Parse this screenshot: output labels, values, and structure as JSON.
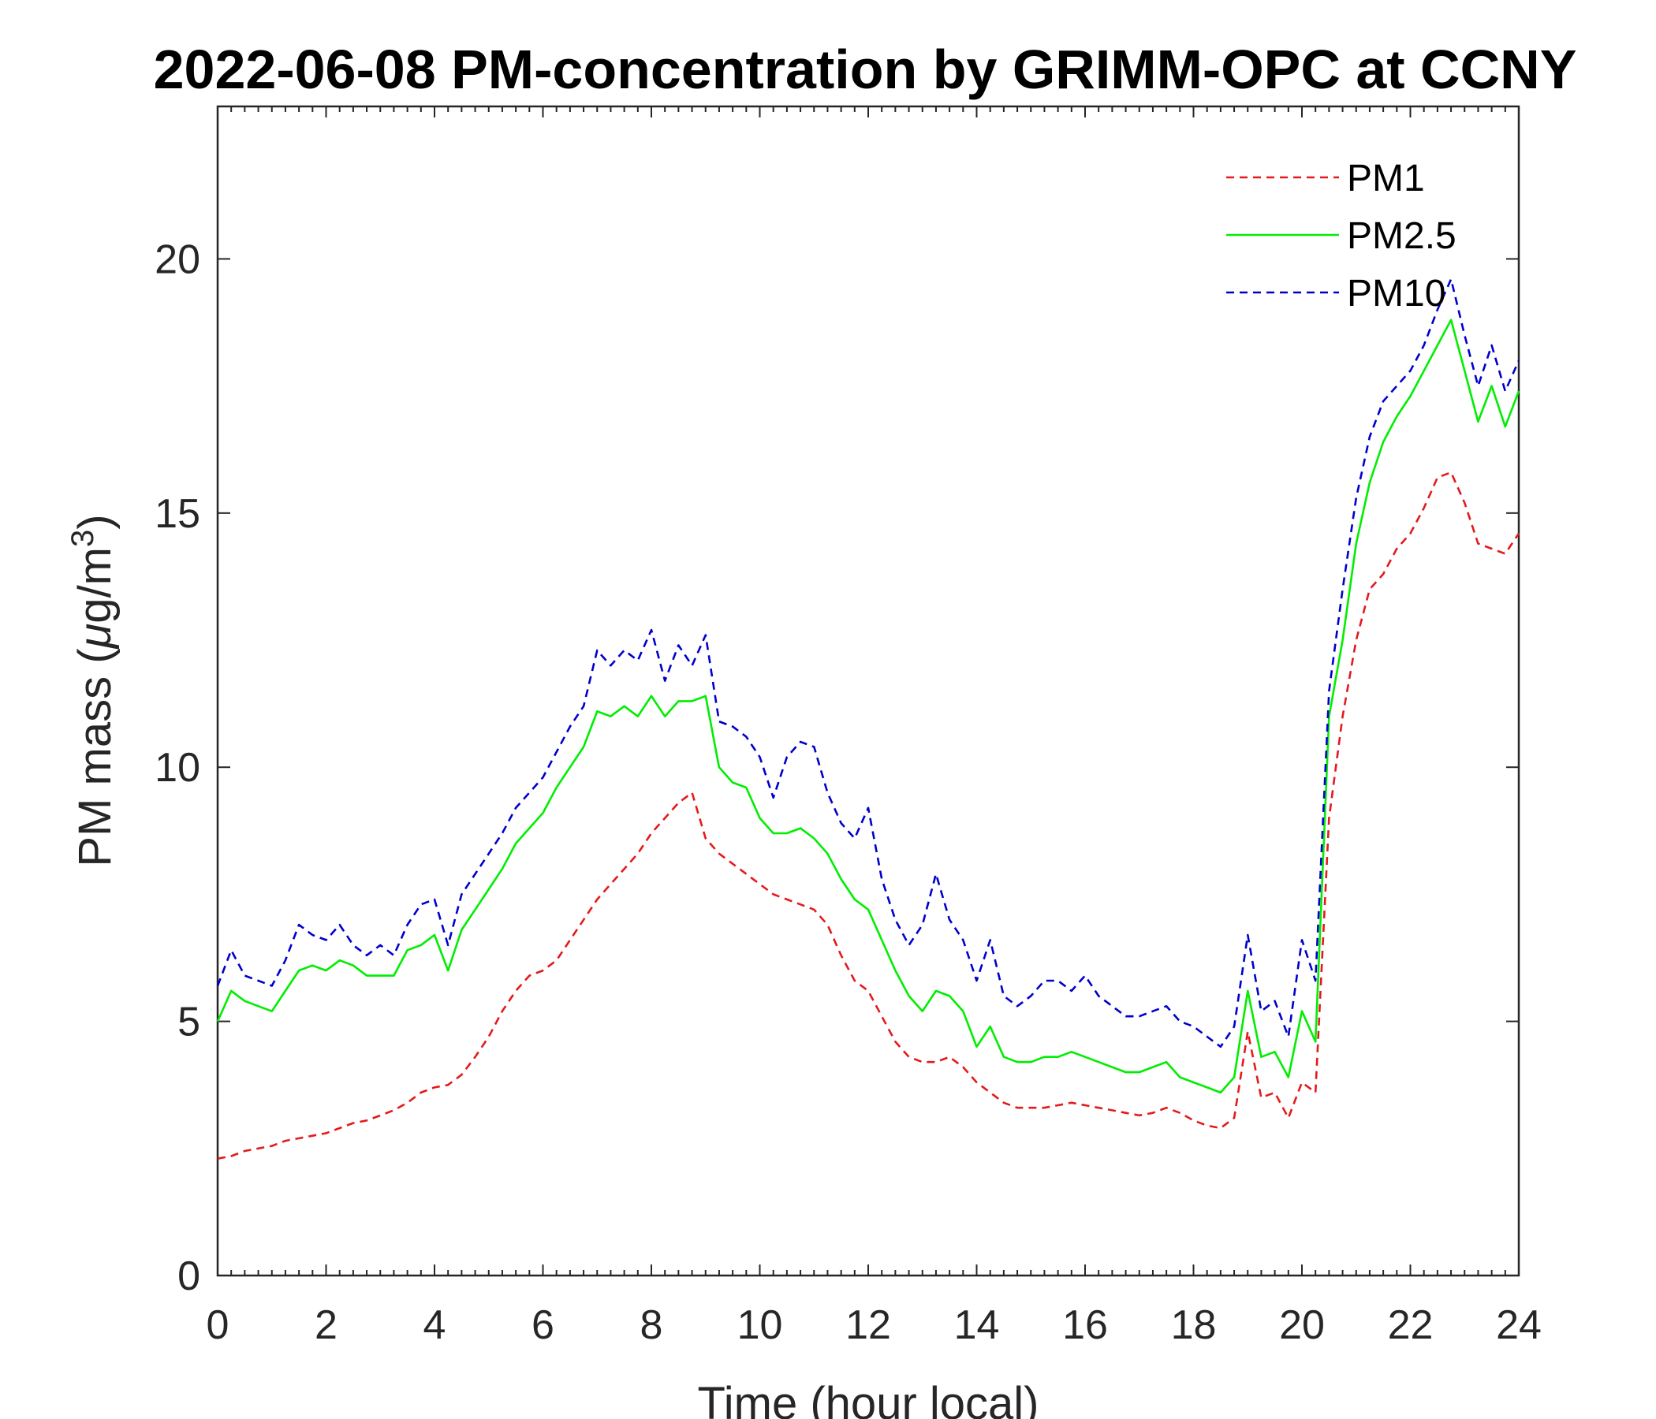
{
  "chart_data": {
    "type": "line",
    "title": "2022-06-08 PM-concentration by GRIMM-OPC at CCNY",
    "xlabel": "Time (hour local)",
    "ylabel_prefix": "PM mass (",
    "ylabel_mu": "μ",
    "ylabel_unit": "g/m",
    "ylabel_sup": "3",
    "ylabel_suffix": ")",
    "xlim": [
      0,
      24
    ],
    "ylim": [
      0,
      23
    ],
    "xticks": [
      0,
      2,
      4,
      6,
      8,
      10,
      12,
      14,
      16,
      18,
      20,
      22,
      24
    ],
    "yticks": [
      0,
      5,
      10,
      15,
      20
    ],
    "grid": false,
    "legend_position": "top-right",
    "x": [
      0,
      0.25,
      0.5,
      0.75,
      1,
      1.25,
      1.5,
      1.75,
      2,
      2.25,
      2.5,
      2.75,
      3,
      3.25,
      3.5,
      3.75,
      4,
      4.25,
      4.5,
      4.75,
      5,
      5.25,
      5.5,
      5.75,
      6,
      6.25,
      6.5,
      6.75,
      7,
      7.25,
      7.5,
      7.75,
      8,
      8.25,
      8.5,
      8.75,
      9,
      9.25,
      9.5,
      9.75,
      10,
      10.25,
      10.5,
      10.75,
      11,
      11.25,
      11.5,
      11.75,
      12,
      12.25,
      12.5,
      12.75,
      13,
      13.25,
      13.5,
      13.75,
      14,
      14.25,
      14.5,
      14.75,
      15,
      15.25,
      15.5,
      15.75,
      16,
      16.25,
      16.5,
      16.75,
      17,
      17.25,
      17.5,
      17.75,
      18,
      18.25,
      18.5,
      18.75,
      19,
      19.25,
      19.5,
      19.75,
      20,
      20.25,
      20.5,
      20.75,
      21,
      21.25,
      21.5,
      21.75,
      22,
      22.25,
      22.5,
      22.75,
      23,
      23.25,
      23.5,
      23.75,
      24
    ],
    "series": [
      {
        "name": "PM1",
        "color": "#e31a1c",
        "style": "dashed",
        "values": [
          2.3,
          2.35,
          2.45,
          2.5,
          2.55,
          2.65,
          2.7,
          2.75,
          2.8,
          2.9,
          3.0,
          3.05,
          3.15,
          3.25,
          3.4,
          3.6,
          3.7,
          3.75,
          3.95,
          4.3,
          4.7,
          5.2,
          5.6,
          5.9,
          6.0,
          6.2,
          6.6,
          7.0,
          7.4,
          7.7,
          8.0,
          8.3,
          8.7,
          9.0,
          9.3,
          9.5,
          8.6,
          8.3,
          8.1,
          7.9,
          7.7,
          7.5,
          7.4,
          7.3,
          7.2,
          6.9,
          6.3,
          5.8,
          5.6,
          5.1,
          4.6,
          4.3,
          4.2,
          4.2,
          4.3,
          4.1,
          3.8,
          3.6,
          3.4,
          3.3,
          3.3,
          3.3,
          3.35,
          3.4,
          3.35,
          3.3,
          3.25,
          3.2,
          3.15,
          3.2,
          3.3,
          3.2,
          3.05,
          2.95,
          2.9,
          3.1,
          4.8,
          3.5,
          3.6,
          3.1,
          3.8,
          3.6,
          9.0,
          11.0,
          12.5,
          13.5,
          13.8,
          14.3,
          14.6,
          15.1,
          15.7,
          15.8,
          15.2,
          14.4,
          14.3,
          14.2,
          14.6
        ]
      },
      {
        "name": "PM2.5",
        "color": "#00ee00",
        "style": "solid",
        "values": [
          5.0,
          5.6,
          5.4,
          5.3,
          5.2,
          5.6,
          6.0,
          6.1,
          6.0,
          6.2,
          6.1,
          5.9,
          5.9,
          5.9,
          6.4,
          6.5,
          6.7,
          6.0,
          6.8,
          7.2,
          7.6,
          8.0,
          8.5,
          8.8,
          9.1,
          9.6,
          10.0,
          10.4,
          11.1,
          11.0,
          11.2,
          11.0,
          11.4,
          11.0,
          11.3,
          11.3,
          11.4,
          10.0,
          9.7,
          9.6,
          9.0,
          8.7,
          8.7,
          8.8,
          8.6,
          8.3,
          7.8,
          7.4,
          7.2,
          6.6,
          6.0,
          5.5,
          5.2,
          5.6,
          5.5,
          5.2,
          4.5,
          4.9,
          4.3,
          4.2,
          4.2,
          4.3,
          4.3,
          4.4,
          4.3,
          4.2,
          4.1,
          4.0,
          4.0,
          4.1,
          4.2,
          3.9,
          3.8,
          3.7,
          3.6,
          3.9,
          5.6,
          4.3,
          4.4,
          3.9,
          5.2,
          4.6,
          11.0,
          12.5,
          14.4,
          15.6,
          16.4,
          16.9,
          17.3,
          17.8,
          18.3,
          18.8,
          17.8,
          16.8,
          17.5,
          16.7,
          17.4
        ]
      },
      {
        "name": "PM10",
        "color": "#0000cc",
        "style": "dashed",
        "values": [
          5.7,
          6.4,
          5.9,
          5.8,
          5.7,
          6.2,
          6.9,
          6.7,
          6.6,
          6.9,
          6.5,
          6.3,
          6.5,
          6.3,
          6.9,
          7.3,
          7.4,
          6.5,
          7.5,
          7.9,
          8.3,
          8.7,
          9.2,
          9.5,
          9.8,
          10.3,
          10.8,
          11.2,
          12.3,
          12.0,
          12.3,
          12.1,
          12.7,
          11.7,
          12.4,
          12.0,
          12.6,
          10.9,
          10.8,
          10.6,
          10.2,
          9.4,
          10.2,
          10.5,
          10.4,
          9.5,
          8.9,
          8.6,
          9.2,
          7.8,
          7.0,
          6.5,
          6.9,
          7.9,
          7.0,
          6.6,
          5.8,
          6.6,
          5.5,
          5.3,
          5.5,
          5.8,
          5.8,
          5.6,
          5.9,
          5.5,
          5.3,
          5.1,
          5.1,
          5.2,
          5.3,
          5.0,
          4.9,
          4.7,
          4.5,
          4.9,
          6.7,
          5.2,
          5.4,
          4.7,
          6.6,
          5.8,
          11.5,
          13.5,
          15.3,
          16.5,
          17.2,
          17.5,
          17.8,
          18.3,
          19.0,
          19.6,
          18.5,
          17.5,
          18.3,
          17.4,
          18.0
        ]
      }
    ]
  }
}
